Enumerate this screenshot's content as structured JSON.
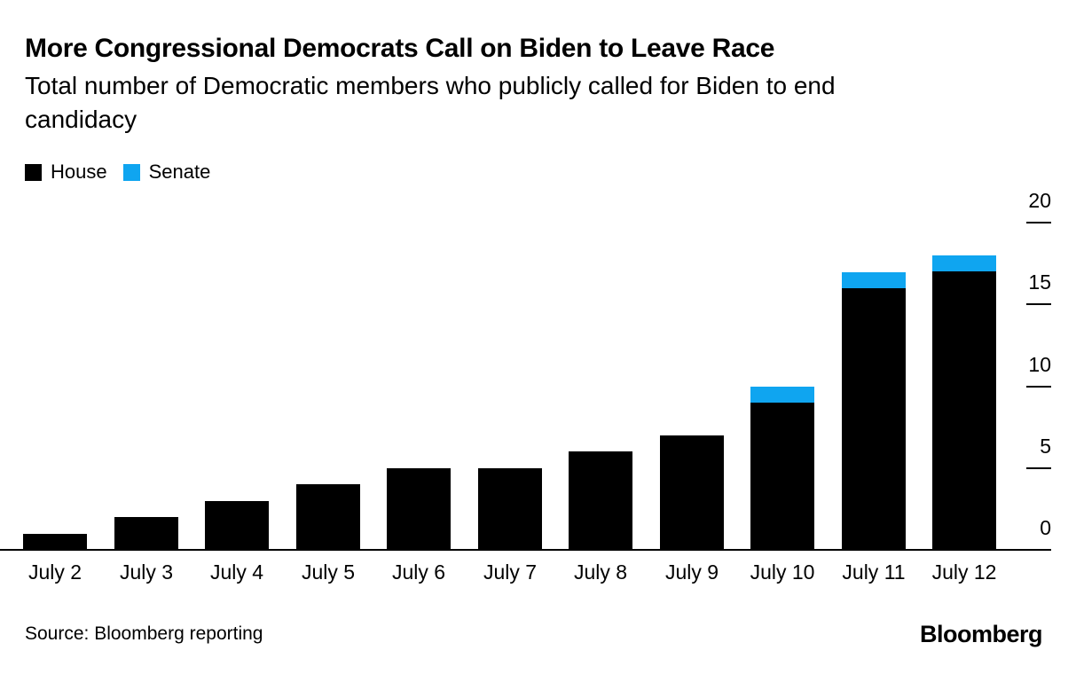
{
  "header": {
    "title": "More Congressional Democrats Call on Biden to Leave Race",
    "subtitle": "Total number of Democratic members who publicly called for Biden to end candidacy"
  },
  "legend": [
    {
      "label": "House",
      "color": "#000000"
    },
    {
      "label": "Senate",
      "color": "#0fa5f0"
    }
  ],
  "chart_data": {
    "type": "bar",
    "stacked": true,
    "title": "More Congressional Democrats Call on Biden to Leave Race",
    "subtitle": "Total number of Democratic members who publicly called for Biden to end candidacy",
    "categories": [
      "July 2",
      "July 3",
      "July 4",
      "July 5",
      "July 6",
      "July 7",
      "July 8",
      "July 9",
      "July 10",
      "July 11",
      "July 12"
    ],
    "series": [
      {
        "name": "House",
        "color": "#000000",
        "values": [
          1,
          2,
          3,
          4,
          5,
          5,
          6,
          7,
          9,
          16,
          17
        ]
      },
      {
        "name": "Senate",
        "color": "#0fa5f0",
        "values": [
          0,
          0,
          0,
          0,
          0,
          0,
          0,
          0,
          1,
          1,
          1
        ]
      }
    ],
    "totals": [
      1,
      2,
      3,
      4,
      5,
      5,
      6,
      7,
      10,
      17,
      18
    ],
    "xlabel": "",
    "ylabel": "",
    "ylim": [
      0,
      20
    ],
    "yticks": [
      0,
      5,
      10,
      15,
      20
    ],
    "y_axis_side": "right",
    "grid": false,
    "legend_position": "top-left"
  },
  "footer": {
    "source": "Source: Bloomberg reporting",
    "brand": "Bloomberg"
  }
}
